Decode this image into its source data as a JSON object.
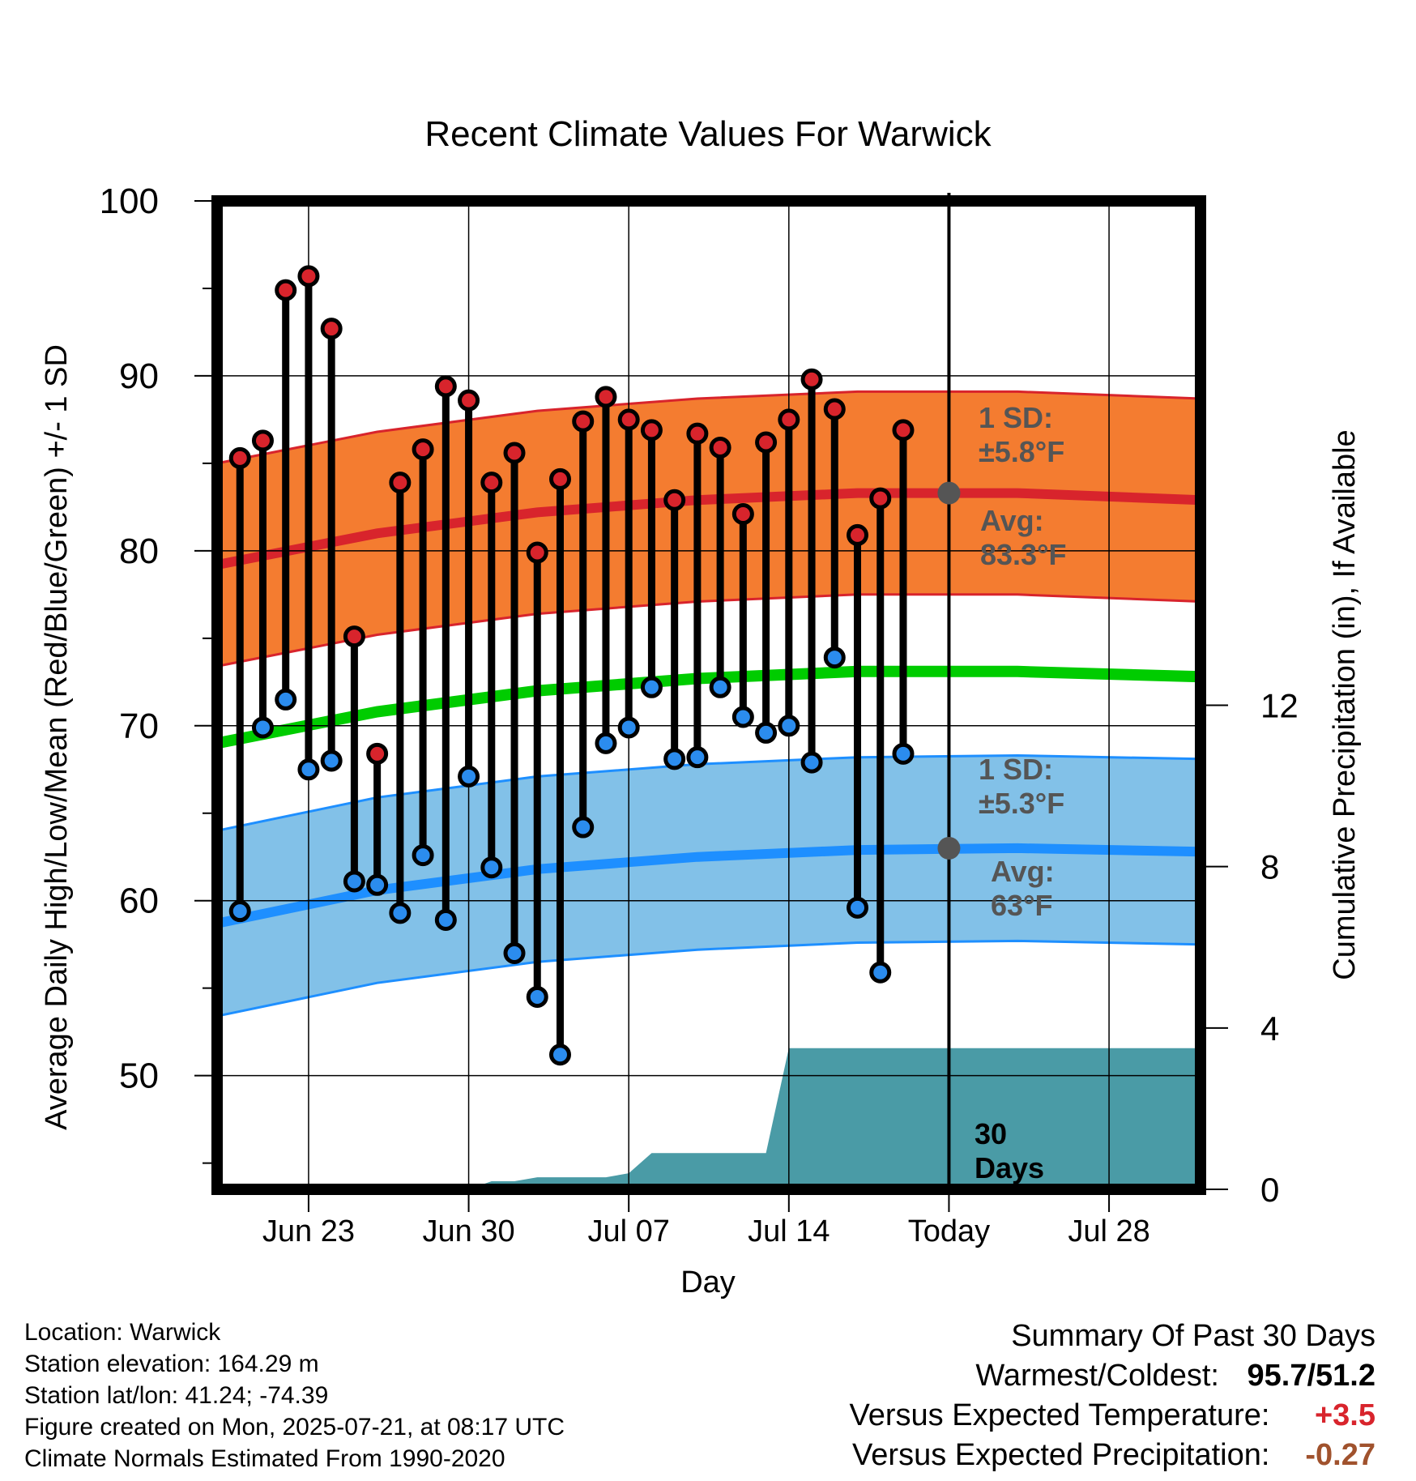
{
  "chart_data": {
    "type": "line",
    "title": "Recent Climate Values For Warwick",
    "xlabel": "Day",
    "ylabel": "Average Daily High/Low/Mean (Red/Blue/Green) +/- 1 SD",
    "y2label": "Cumulative Precipitation (in), If Available",
    "xlim": [
      "2025-06-19",
      "2025-08-01"
    ],
    "ylim": [
      43.5,
      100
    ],
    "y2lim": [
      0,
      24.5
    ],
    "x_ticks": [
      "Jun 23",
      "Jun 30",
      "Jul 07",
      "Jul 14",
      "Today",
      "Jul 28"
    ],
    "y_ticks": [
      50,
      60,
      70,
      80,
      90,
      100
    ],
    "y2_ticks": [
      0,
      4,
      8,
      12
    ],
    "today": "2025-07-21",
    "grid": true,
    "daily_dates": [
      "2025-06-20",
      "2025-06-21",
      "2025-06-22",
      "2025-06-23",
      "2025-06-24",
      "2025-06-25",
      "2025-06-26",
      "2025-06-27",
      "2025-06-28",
      "2025-06-29",
      "2025-06-30",
      "2025-07-01",
      "2025-07-02",
      "2025-07-03",
      "2025-07-04",
      "2025-07-05",
      "2025-07-06",
      "2025-07-07",
      "2025-07-08",
      "2025-07-09",
      "2025-07-10",
      "2025-07-11",
      "2025-07-12",
      "2025-07-13",
      "2025-07-14",
      "2025-07-15",
      "2025-07-16",
      "2025-07-17",
      "2025-07-18",
      "2025-07-19",
      "2025-07-20"
    ],
    "daily_high": [
      85.3,
      86.3,
      94.9,
      95.7,
      92.7,
      75.1,
      68.4,
      83.9,
      85.8,
      89.4,
      88.6,
      83.9,
      85.6,
      79.9,
      84.1,
      87.4,
      88.8,
      87.5,
      86.9,
      82.9,
      86.7,
      85.9,
      82.1,
      86.2,
      87.5,
      89.8,
      88.1,
      80.9,
      83.0,
      86.9,
      null
    ],
    "daily_low": [
      59.4,
      69.9,
      71.5,
      67.5,
      68.0,
      61.1,
      60.9,
      59.3,
      62.6,
      58.9,
      67.1,
      61.9,
      57.0,
      54.5,
      51.2,
      64.2,
      69.0,
      69.9,
      72.2,
      68.1,
      68.2,
      72.2,
      70.5,
      69.6,
      70.0,
      67.9,
      73.9,
      59.6,
      55.9,
      68.4,
      null
    ],
    "normals_dates": [
      "2025-06-19",
      "2025-06-26",
      "2025-07-03",
      "2025-07-10",
      "2025-07-17",
      "2025-07-24",
      "2025-08-01"
    ],
    "normal_high": [
      79.2,
      81.0,
      82.2,
      82.9,
      83.3,
      83.3,
      82.9
    ],
    "normal_high_sd": 5.8,
    "normal_low": [
      58.7,
      60.6,
      61.8,
      62.5,
      62.9,
      63.0,
      62.8
    ],
    "normal_low_sd": 5.3,
    "normal_mean": [
      69.0,
      70.8,
      72.0,
      72.7,
      73.1,
      73.1,
      72.8
    ],
    "precip_dates": [
      "2025-06-19",
      "2025-06-30",
      "2025-07-01",
      "2025-07-02",
      "2025-07-03",
      "2025-07-04",
      "2025-07-05",
      "2025-07-06",
      "2025-07-07",
      "2025-07-08",
      "2025-07-09",
      "2025-07-10",
      "2025-07-11",
      "2025-07-12",
      "2025-07-13",
      "2025-07-14",
      "2025-07-21",
      "2025-08-01"
    ],
    "precip_cumulative": [
      0,
      0,
      0.2,
      0.2,
      0.3,
      0.3,
      0.3,
      0.3,
      0.4,
      0.9,
      0.9,
      0.9,
      0.9,
      0.9,
      0.9,
      3.5,
      3.5,
      3.5
    ],
    "annotations": {
      "high_sd": {
        "line1": "1 SD:",
        "line2": "±5.8°F"
      },
      "high_avg": {
        "line1": "Avg:",
        "line2": "83.3°F"
      },
      "low_sd": {
        "line1": "1 SD:",
        "line2": "±5.3°F"
      },
      "low_avg": {
        "line1": "Avg:",
        "line2": "63°F"
      },
      "period": {
        "line1": "30",
        "line2": "Days"
      }
    },
    "colors": {
      "high_band": "#f47c30",
      "high_line": "#d8242c",
      "low_band": "#82c1e8",
      "low_line": "#1e8fff",
      "mean_line": "#00cc00",
      "precip": "#4a9ba6",
      "high_dot": "#d8242c",
      "low_dot": "#2b8cee",
      "annotation": "#555555"
    }
  },
  "footer": {
    "location": "Location: Warwick",
    "elevation": "Station elevation: 164.29 m",
    "latlon": "Station lat/lon: 41.24; -74.39",
    "created": "Figure created on Mon, 2025-07-21, at 08:17 UTC",
    "normals": "Climate Normals Estimated From 1990-2020"
  },
  "summary": {
    "heading": "Summary Of Past 30 Days",
    "warmest_label": "Warmest/Coldest:",
    "warmest_value": "95.7/51.2",
    "temp_label": "Versus Expected Temperature:",
    "temp_value": "+3.5",
    "temp_color": "#d8242c",
    "precip_label": "Versus Expected Precipitation:",
    "precip_value": "-0.27",
    "precip_color": "#a0522d"
  }
}
